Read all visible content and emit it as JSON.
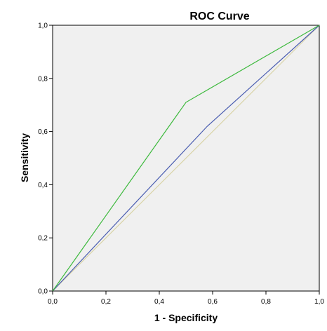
{
  "chart_data": {
    "type": "line",
    "title": "ROC Curve",
    "xlabel": "1 - Specificity",
    "ylabel": "Sensitivity",
    "xlim": [
      0.0,
      1.0
    ],
    "ylim": [
      0.0,
      1.0
    ],
    "xticks": [
      0.0,
      0.2,
      0.4,
      0.6,
      0.8,
      1.0
    ],
    "yticks": [
      0.0,
      0.2,
      0.4,
      0.6,
      0.8,
      1.0
    ],
    "xtick_labels": [
      "0,0",
      "0,2",
      "0,4",
      "0,6",
      "0,8",
      "1,0"
    ],
    "ytick_labels": [
      "0,0",
      "0,2",
      "0,4",
      "0,6",
      "0,8",
      "1,0"
    ],
    "grid": false,
    "plot_background": "#f0f0f0",
    "series": [
      {
        "color": "#3cb93c",
        "x": [
          0.0,
          0.5,
          1.0
        ],
        "y": [
          0.0,
          0.71,
          1.0
        ]
      },
      {
        "color": "#4a5db0",
        "x": [
          0.0,
          0.58,
          1.0
        ],
        "y": [
          0.0,
          0.62,
          1.0
        ]
      },
      {
        "color": "#d9d4a8",
        "x": [
          0.0,
          1.0
        ],
        "y": [
          0.0,
          1.0
        ]
      }
    ]
  }
}
